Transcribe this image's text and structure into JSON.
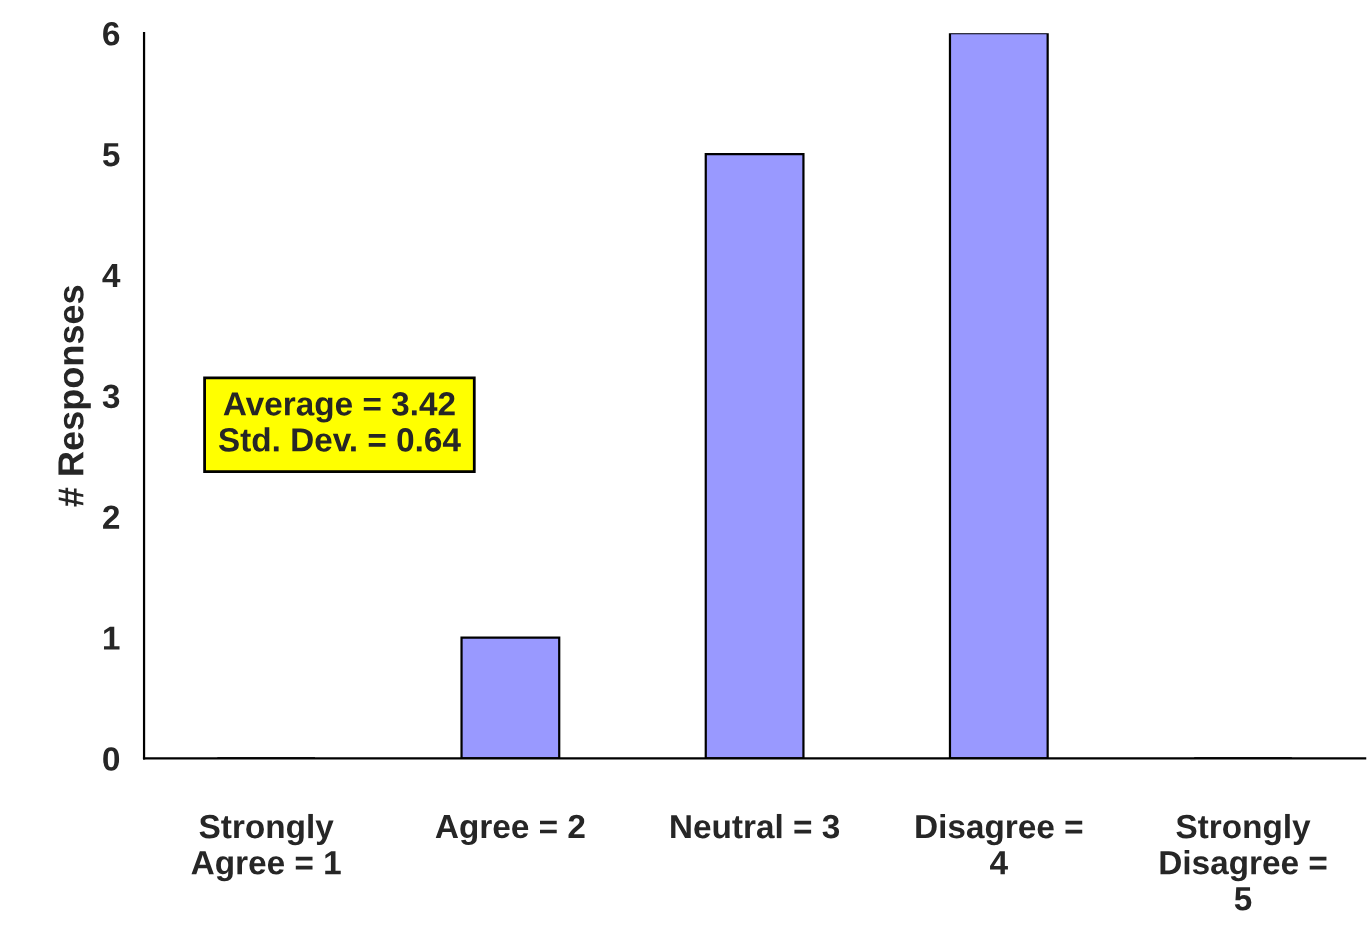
{
  "chart_data": {
    "type": "bar",
    "ylabel": "# Responses",
    "categories": [
      "Strongly\nAgree = 1",
      "Agree = 2",
      "Neutral = 3",
      "Disagree =\n4",
      "Strongly\nDisagree =\n5"
    ],
    "values": [
      0,
      1,
      5,
      6,
      0
    ],
    "color": "#9999ff",
    "ylim": [
      0,
      6
    ],
    "yticks": [
      0,
      1,
      2,
      3,
      4,
      5,
      6
    ],
    "grid": false,
    "legend": false,
    "annotations": [
      "Average = 3.42\nStd. Dev. = 0.64"
    ]
  }
}
